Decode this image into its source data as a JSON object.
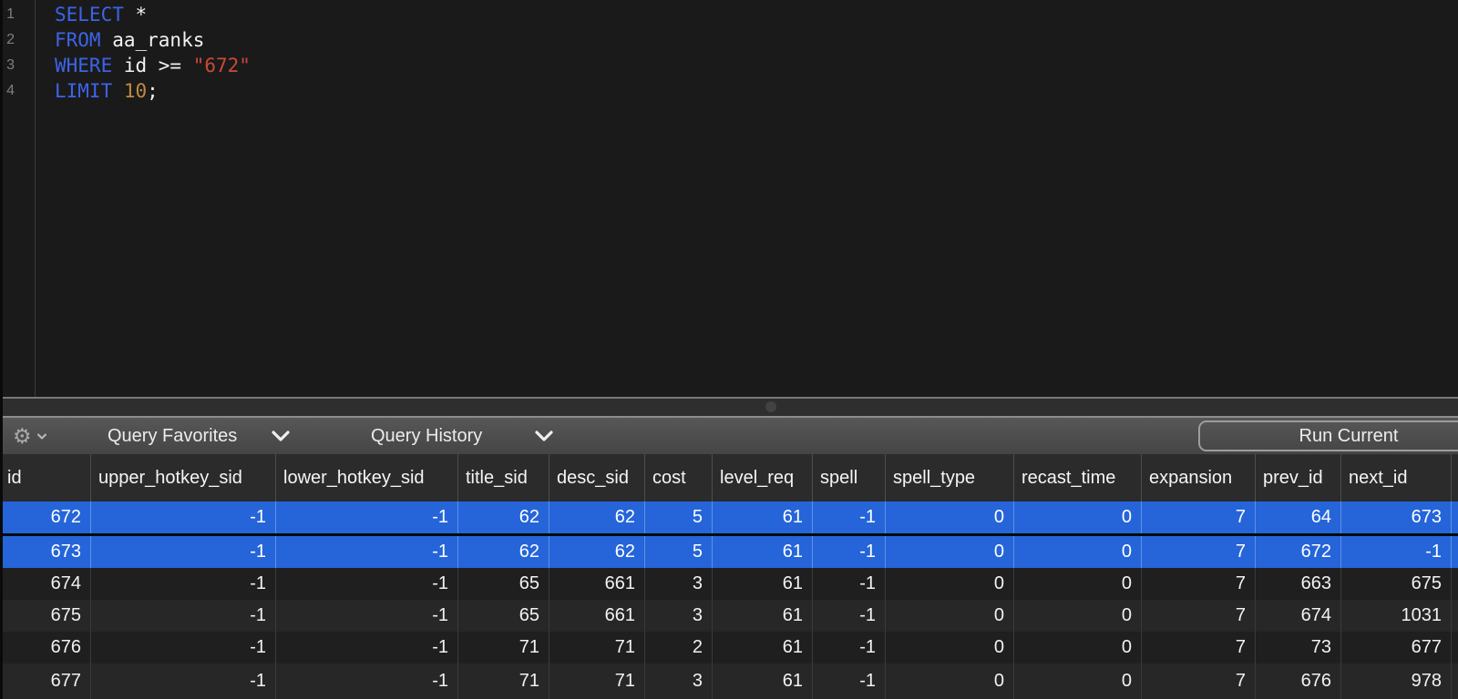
{
  "editor": {
    "lines": [
      {
        "number": "1",
        "tokens": [
          {
            "t": "SELECT",
            "c": "kw"
          },
          {
            "t": " *",
            "c": "pl"
          }
        ]
      },
      {
        "number": "2",
        "tokens": [
          {
            "t": "FROM",
            "c": "kw"
          },
          {
            "t": " aa_ranks",
            "c": "pl"
          }
        ]
      },
      {
        "number": "3",
        "tokens": [
          {
            "t": "WHERE",
            "c": "kw"
          },
          {
            "t": " id >= ",
            "c": "pl"
          },
          {
            "t": "\"672\"",
            "c": "str"
          }
        ]
      },
      {
        "number": "4",
        "tokens": [
          {
            "t": "LIMIT",
            "c": "kw"
          },
          {
            "t": " ",
            "c": "pl"
          },
          {
            "t": "10",
            "c": "num"
          },
          {
            "t": ";",
            "c": "pl"
          }
        ]
      }
    ],
    "colors": {
      "keyword": "#3d64e8",
      "plain": "#f2f2f2",
      "string": "#cb4936",
      "number": "#c08a3e",
      "line_number": "#7f7f7f"
    }
  },
  "toolbar": {
    "gear_icon": "gear-icon",
    "favorites_label": "Query Favorites",
    "history_label": "Query History",
    "run_button_label": "Run Current"
  },
  "table": {
    "selection_color": "#2565d9",
    "columns": [
      "id",
      "upper_hotkey_sid",
      "lower_hotkey_sid",
      "title_sid",
      "desc_sid",
      "cost",
      "level_req",
      "spell",
      "spell_type",
      "recast_time",
      "expansion",
      "prev_id",
      "next_id"
    ],
    "rows": [
      {
        "selected": true,
        "cells": [
          "672",
          "-1",
          "-1",
          "62",
          "62",
          "5",
          "61",
          "-1",
          "0",
          "0",
          "7",
          "64",
          "673"
        ]
      },
      {
        "selected": true,
        "cells": [
          "673",
          "-1",
          "-1",
          "62",
          "62",
          "5",
          "61",
          "-1",
          "0",
          "0",
          "7",
          "672",
          "-1"
        ]
      },
      {
        "selected": false,
        "cells": [
          "674",
          "-1",
          "-1",
          "65",
          "661",
          "3",
          "61",
          "-1",
          "0",
          "0",
          "7",
          "663",
          "675"
        ]
      },
      {
        "selected": false,
        "cells": [
          "675",
          "-1",
          "-1",
          "65",
          "661",
          "3",
          "61",
          "-1",
          "0",
          "0",
          "7",
          "674",
          "1031"
        ]
      },
      {
        "selected": false,
        "cells": [
          "676",
          "-1",
          "-1",
          "71",
          "71",
          "2",
          "61",
          "-1",
          "0",
          "0",
          "7",
          "73",
          "677"
        ]
      },
      {
        "selected": false,
        "cells": [
          "677",
          "-1",
          "-1",
          "71",
          "71",
          "3",
          "61",
          "-1",
          "0",
          "0",
          "7",
          "676",
          "978"
        ]
      }
    ]
  }
}
